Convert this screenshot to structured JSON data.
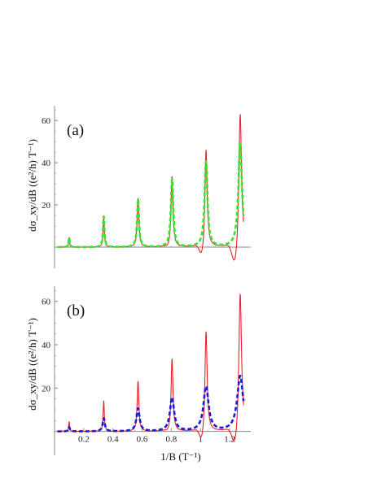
{
  "chart_data": [
    {
      "type": "line",
      "panel_label": "(a)",
      "ylabel": "dσ_xy/dB ((e²/h) T⁻¹)",
      "xlabel": "",
      "xlim": [
        0.0,
        1.3
      ],
      "ylim": [
        -10,
        67
      ],
      "yticks": [
        20,
        40,
        60
      ],
      "grid": false,
      "series": [
        {
          "style": "solid",
          "color": "#e8202a",
          "peaks": [
            {
              "x": 0.1,
              "height": 4.5,
              "width": 0.004,
              "dip": 0
            },
            {
              "x": 0.337,
              "height": 14,
              "width": 0.005,
              "dip": 0
            },
            {
              "x": 0.572,
              "height": 23,
              "width": 0.007,
              "dip": 0
            },
            {
              "x": 0.805,
              "height": 33.5,
              "width": 0.008,
              "dip": -1
            },
            {
              "x": 1.038,
              "height": 47,
              "width": 0.009,
              "dip": -6
            },
            {
              "x": 1.272,
              "height": 65,
              "width": 0.011,
              "dip": -11
            }
          ]
        },
        {
          "style": "dashed",
          "color": "#33e62b",
          "peaks": [
            {
              "x": 0.1,
              "height": 4.5,
              "width": 0.005,
              "dip": 0
            },
            {
              "x": 0.337,
              "height": 14.5,
              "width": 0.006,
              "dip": 0
            },
            {
              "x": 0.572,
              "height": 22.5,
              "width": 0.008,
              "dip": 0
            },
            {
              "x": 0.805,
              "height": 32,
              "width": 0.01,
              "dip": 0
            },
            {
              "x": 1.038,
              "height": 40.5,
              "width": 0.012,
              "dip": 0
            },
            {
              "x": 1.272,
              "height": 49,
              "width": 0.015,
              "dip": 0
            }
          ]
        }
      ]
    },
    {
      "type": "line",
      "panel_label": "(b)",
      "ylabel": "dσ_xy/dB ((e²/h) T⁻¹)",
      "xlabel": "1/B (T⁻¹)",
      "xlim": [
        0.0,
        1.3
      ],
      "ylim": [
        -11,
        67
      ],
      "xticks": [
        0.2,
        0.4,
        0.6,
        0.8,
        1.0,
        1.2
      ],
      "yticks": [
        20,
        40,
        60
      ],
      "grid": false,
      "series": [
        {
          "style": "solid",
          "color": "#e8202a",
          "peaks": [
            {
              "x": 0.1,
              "height": 4.5,
              "width": 0.004,
              "dip": 0
            },
            {
              "x": 0.337,
              "height": 14,
              "width": 0.005,
              "dip": 0
            },
            {
              "x": 0.572,
              "height": 23,
              "width": 0.007,
              "dip": 0
            },
            {
              "x": 0.805,
              "height": 33.5,
              "width": 0.008,
              "dip": -1
            },
            {
              "x": 1.038,
              "height": 47,
              "width": 0.009,
              "dip": -6
            },
            {
              "x": 1.272,
              "height": 65,
              "width": 0.011,
              "dip": -9
            }
          ]
        },
        {
          "style": "dashed",
          "color": "#1a1adb",
          "peaks": [
            {
              "x": 0.1,
              "height": 2,
              "width": 0.006,
              "dip": 0
            },
            {
              "x": 0.337,
              "height": 6,
              "width": 0.009,
              "dip": 0
            },
            {
              "x": 0.572,
              "height": 10.5,
              "width": 0.013,
              "dip": 0
            },
            {
              "x": 0.805,
              "height": 15.5,
              "width": 0.017,
              "dip": 0
            },
            {
              "x": 1.038,
              "height": 20.5,
              "width": 0.021,
              "dip": 0
            },
            {
              "x": 1.272,
              "height": 25.5,
              "width": 0.025,
              "dip": 0
            }
          ]
        }
      ]
    }
  ]
}
